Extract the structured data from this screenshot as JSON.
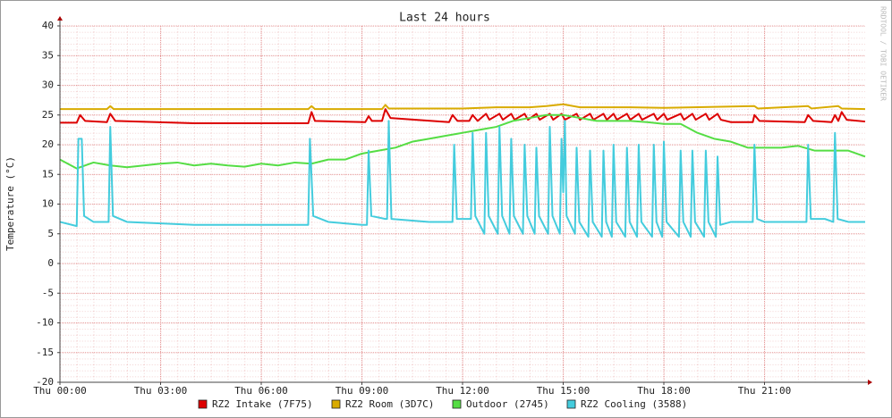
{
  "chart_data": {
    "type": "line",
    "title": "Last 24 hours",
    "ylabel": "Temperature (°C)",
    "watermark": "RRDTOOL / TOBI OETIKER",
    "xlim": [
      0,
      24
    ],
    "xticks": [
      {
        "value": 0,
        "label": "Thu 00:00"
      },
      {
        "value": 3,
        "label": "Thu 03:00"
      },
      {
        "value": 6,
        "label": "Thu 06:00"
      },
      {
        "value": 9,
        "label": "Thu 09:00"
      },
      {
        "value": 12,
        "label": "Thu 12:00"
      },
      {
        "value": 15,
        "label": "Thu 15:00"
      },
      {
        "value": 18,
        "label": "Thu 18:00"
      },
      {
        "value": 21,
        "label": "Thu 21:00"
      }
    ],
    "ylim": [
      -20,
      40
    ],
    "yticks": [
      -20,
      -15,
      -10,
      -5,
      0,
      5,
      10,
      15,
      20,
      25,
      30,
      35,
      40
    ],
    "grid": true,
    "legend": "bottom",
    "series": [
      {
        "name": "RZ2 Intake (7F75)",
        "color": "#dd0000",
        "x": [
          0,
          0.5,
          0.6,
          0.75,
          1.4,
          1.5,
          1.65,
          4,
          7.4,
          7.5,
          7.6,
          9.1,
          9.2,
          9.3,
          9.6,
          9.7,
          9.85,
          11.6,
          11.7,
          11.85,
          12.2,
          12.3,
          12.45,
          12.7,
          12.8,
          13.1,
          13.2,
          13.45,
          13.55,
          13.85,
          13.95,
          14.2,
          14.3,
          14.6,
          14.7,
          14.95,
          15.05,
          15.4,
          15.5,
          15.8,
          15.9,
          16.2,
          16.3,
          16.5,
          16.6,
          16.9,
          17,
          17.25,
          17.35,
          17.7,
          17.8,
          18,
          18.1,
          18.5,
          18.6,
          18.85,
          18.95,
          19.25,
          19.35,
          19.6,
          19.7,
          20,
          20.65,
          20.7,
          20.85,
          22.2,
          22.3,
          22.45,
          23.0,
          23.1,
          23.2,
          23.3,
          23.45,
          24
        ],
        "values": [
          23.7,
          23.7,
          25,
          24,
          23.8,
          25.2,
          24,
          23.6,
          23.6,
          25.5,
          24,
          23.8,
          24.8,
          24,
          24,
          26,
          24.5,
          23.8,
          25,
          24,
          24,
          25,
          24,
          25.2,
          24.2,
          25.2,
          24.2,
          25.2,
          24.2,
          25.2,
          24.2,
          25.2,
          24.2,
          25.2,
          24.2,
          25.2,
          24.2,
          25.2,
          24.2,
          25.2,
          24.2,
          25.2,
          24.2,
          25.2,
          24.2,
          25.2,
          24.2,
          25.2,
          24.2,
          25.2,
          24.2,
          25.2,
          24.2,
          25.2,
          24.2,
          25.2,
          24.2,
          25.2,
          24.2,
          25.2,
          24.2,
          23.8,
          23.8,
          25,
          24,
          23.8,
          25,
          24,
          23.8,
          25,
          24,
          25.5,
          24.2,
          23.9
        ]
      },
      {
        "name": "RZ2 Room (3D7C)",
        "color": "#d9ab00",
        "x": [
          0,
          1.4,
          1.5,
          1.6,
          7.4,
          7.5,
          7.6,
          9.6,
          9.7,
          9.8,
          12,
          13,
          14,
          14.5,
          15,
          15.5,
          16,
          17,
          18,
          20.7,
          20.8,
          22.3,
          22.4,
          23.2,
          23.3,
          24
        ],
        "values": [
          26,
          26,
          26.5,
          26,
          26,
          26.5,
          26,
          26,
          26.7,
          26.1,
          26.1,
          26.3,
          26.3,
          26.5,
          26.8,
          26.3,
          26.3,
          26.3,
          26.2,
          26.5,
          26.1,
          26.5,
          26.1,
          26.5,
          26.1,
          26
        ]
      },
      {
        "name": "Outdoor (2745)",
        "color": "#55dd44",
        "x": [
          0,
          0.5,
          1,
          1.5,
          2,
          2.5,
          3,
          3.5,
          4,
          4.5,
          5,
          5.5,
          6,
          6.5,
          7,
          7.5,
          8,
          8.5,
          9,
          9.5,
          10,
          10.5,
          11,
          11.5,
          12,
          12.5,
          13,
          13.5,
          14,
          14.5,
          15,
          15.5,
          16,
          16.5,
          17,
          17.5,
          18,
          18.5,
          19,
          19.5,
          20,
          20.5,
          21,
          21.5,
          22,
          22.5,
          23,
          23.5,
          24
        ],
        "values": [
          17.5,
          16,
          17,
          16.5,
          16.2,
          16.5,
          16.8,
          17,
          16.5,
          16.8,
          16.5,
          16.3,
          16.8,
          16.5,
          17,
          16.8,
          17.5,
          17.5,
          18.5,
          19,
          19.5,
          20.5,
          21,
          21.5,
          22,
          22.5,
          23,
          24,
          24.5,
          25,
          25,
          24.5,
          24,
          24,
          24,
          23.8,
          23.5,
          23.5,
          22,
          21,
          20.5,
          19.5,
          19.5,
          19.5,
          19.8,
          19,
          19,
          19,
          18
        ]
      },
      {
        "name": "RZ2 Cooling (3588)",
        "color": "#44ccdd",
        "x": [
          0,
          0.5,
          0.55,
          0.65,
          0.72,
          1.0,
          1.45,
          1.5,
          1.58,
          2,
          4,
          6,
          7.4,
          7.45,
          7.55,
          8,
          9,
          9.15,
          9.2,
          9.28,
          9.7,
          9.75,
          9.8,
          9.88,
          11,
          11.7,
          11.75,
          11.83,
          12.25,
          12.3,
          12.38,
          12.65,
          12.7,
          12.78,
          13.05,
          13.1,
          13.18,
          13.4,
          13.45,
          13.53,
          13.8,
          13.85,
          13.93,
          14.15,
          14.2,
          14.28,
          14.55,
          14.6,
          14.68,
          14.9,
          14.95,
          15.0,
          15.05,
          15.1,
          15.35,
          15.4,
          15.48,
          15.75,
          15.8,
          15.88,
          16.15,
          16.2,
          16.28,
          16.45,
          16.5,
          16.58,
          16.85,
          16.9,
          16.98,
          17.2,
          17.25,
          17.33,
          17.65,
          17.7,
          17.78,
          17.95,
          18.0,
          18.08,
          18.45,
          18.5,
          18.58,
          18.8,
          18.85,
          18.93,
          19.2,
          19.25,
          19.33,
          19.55,
          19.6,
          19.68,
          20,
          20.65,
          20.7,
          20.78,
          21,
          22,
          22.25,
          22.3,
          22.38,
          22.8,
          23.05,
          23.1,
          23.18,
          23.5,
          24
        ],
        "values": [
          7,
          6.3,
          21,
          21,
          8,
          7,
          7,
          23,
          8,
          7,
          6.5,
          6.5,
          6.5,
          21,
          8,
          7,
          6.5,
          6.5,
          19,
          8,
          7.5,
          7.5,
          24,
          7.5,
          7,
          7,
          20,
          7.5,
          7.5,
          22,
          8,
          5,
          22,
          8,
          5,
          23,
          8,
          5,
          21,
          8,
          5,
          20,
          8,
          5,
          19.5,
          8,
          5,
          23,
          8,
          5,
          21,
          12,
          24,
          8,
          5,
          19.5,
          7,
          4.5,
          19,
          7,
          4.5,
          19,
          7,
          4.5,
          20,
          7,
          4.5,
          19.5,
          7,
          4.5,
          20,
          7,
          4.5,
          20,
          7,
          4.5,
          20.5,
          7,
          4.5,
          19,
          7,
          4.5,
          19,
          7,
          4.5,
          19,
          7,
          4.5,
          18,
          6.5,
          7,
          7,
          20,
          7.5,
          7,
          7,
          7,
          20,
          7.5,
          7.5,
          7,
          22,
          7.5,
          7,
          7
        ]
      }
    ]
  }
}
